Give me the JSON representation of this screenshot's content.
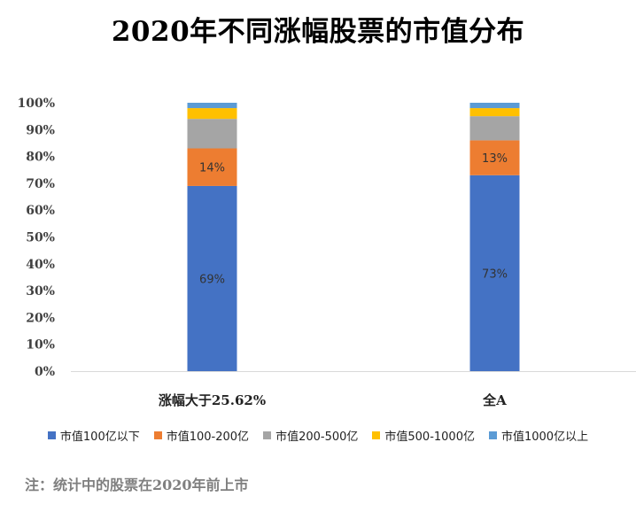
{
  "chart_data": {
    "type": "bar",
    "stacked": true,
    "title": "2020年不同涨幅股票的市值分布",
    "categories": [
      "涨幅大于25.62%",
      "全A"
    ],
    "ylim": [
      0,
      100
    ],
    "y_ticks": [
      "0%",
      "10%",
      "20%",
      "30%",
      "40%",
      "50%",
      "60%",
      "70%",
      "80%",
      "90%",
      "100%"
    ],
    "grid": false,
    "legend_position": "bottom",
    "series": [
      {
        "name": "市值100亿以下",
        "color": "#4472C4",
        "values": [
          69,
          73
        ],
        "labels": [
          "69%",
          "73%"
        ]
      },
      {
        "name": "市值100-200亿",
        "color": "#ED7D31",
        "values": [
          14,
          13
        ],
        "labels": [
          "14%",
          "13%"
        ]
      },
      {
        "name": "市值200-500亿",
        "color": "#A5A5A5",
        "values": [
          11,
          9
        ],
        "labels": [
          "",
          ""
        ]
      },
      {
        "name": "市值500-1000亿",
        "color": "#FFC000",
        "values": [
          4,
          3
        ],
        "labels": [
          "",
          ""
        ]
      },
      {
        "name": "市值1000亿以上",
        "color": "#5B9BD5",
        "values": [
          2,
          2
        ],
        "labels": [
          "",
          ""
        ]
      }
    ]
  },
  "footnote": "注：统计中的股票在2020年前上市"
}
